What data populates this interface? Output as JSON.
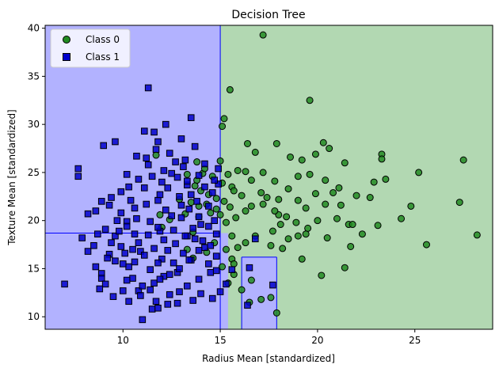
{
  "chart_data": {
    "type": "scatter",
    "title": "Decision Tree",
    "xlabel": "Radius Mean [standardized]",
    "ylabel": "Texture Mean [standardized]",
    "xlim": [
      6.0,
      29.0
    ],
    "ylim": [
      8.7,
      40.3
    ],
    "xticks": [
      10,
      15,
      20,
      25
    ],
    "yticks": [
      10,
      15,
      20,
      25,
      30,
      35,
      40
    ],
    "grid": false,
    "legend_position": "top-left",
    "colors": {
      "class0_region": "#b2d8b2",
      "class1_region": "#b2b2ff",
      "class0_marker": "#228b22",
      "class1_marker": "#0000cd",
      "boundary": "#0000ff"
    },
    "decision_regions": [
      {
        "label": "Class 1",
        "x": [
          6.0,
          15.0
        ],
        "y": [
          8.7,
          40.3
        ]
      },
      {
        "label": "Class 0",
        "x": [
          15.0,
          29.0
        ],
        "y": [
          8.7,
          40.3
        ]
      },
      {
        "label": "Class 1",
        "x": [
          16.1,
          17.9
        ],
        "y": [
          8.7,
          16.2
        ]
      },
      {
        "label": "Class 1",
        "x": [
          15.0,
          15.4
        ],
        "y": [
          8.7,
          18.7
        ]
      }
    ],
    "boundary_lines": [
      {
        "x": [
          15.0,
          15.0
        ],
        "y": [
          8.7,
          40.3
        ]
      },
      {
        "x": [
          6.0,
          15.0
        ],
        "y": [
          18.7,
          18.7
        ]
      },
      {
        "x": [
          16.1,
          16.1
        ],
        "y": [
          8.7,
          16.2
        ]
      },
      {
        "x": [
          17.9,
          17.9
        ],
        "y": [
          8.7,
          16.2
        ]
      },
      {
        "x": [
          16.1,
          17.9
        ],
        "y": [
          16.2,
          16.2
        ]
      }
    ],
    "series": [
      {
        "name": "Class 0",
        "marker": "circle",
        "points": [
          [
            17.2,
            39.3
          ],
          [
            15.5,
            33.6
          ],
          [
            15.2,
            30.6
          ],
          [
            15.1,
            29.8
          ],
          [
            16.4,
            28.0
          ],
          [
            17.9,
            28.0
          ],
          [
            19.6,
            32.5
          ],
          [
            16.8,
            27.1
          ],
          [
            18.6,
            26.6
          ],
          [
            19.2,
            26.3
          ],
          [
            20.3,
            28.1
          ],
          [
            20.6,
            27.5
          ],
          [
            19.9,
            26.9
          ],
          [
            21.4,
            26.0
          ],
          [
            23.3,
            26.9
          ],
          [
            23.3,
            26.4
          ],
          [
            23.5,
            24.3
          ],
          [
            25.2,
            25.0
          ],
          [
            27.5,
            26.3
          ],
          [
            27.3,
            21.9
          ],
          [
            24.8,
            21.5
          ],
          [
            24.3,
            20.2
          ],
          [
            25.6,
            17.5
          ],
          [
            28.2,
            18.5
          ],
          [
            22.7,
            22.4
          ],
          [
            22.0,
            22.6
          ],
          [
            21.7,
            17.3
          ],
          [
            21.4,
            15.1
          ],
          [
            20.2,
            14.3
          ],
          [
            19.2,
            16.0
          ],
          [
            19.0,
            18.4
          ],
          [
            18.5,
            18.1
          ],
          [
            18.1,
            19.6
          ],
          [
            17.7,
            18.9
          ],
          [
            18.0,
            20.6
          ],
          [
            16.3,
            21.0
          ],
          [
            16.6,
            21.5
          ],
          [
            17.1,
            22.9
          ],
          [
            17.4,
            22.4
          ],
          [
            18.0,
            22.2
          ],
          [
            18.5,
            23.3
          ],
          [
            19.0,
            22.1
          ],
          [
            19.4,
            21.3
          ],
          [
            19.9,
            22.8
          ],
          [
            20.4,
            21.7
          ],
          [
            20.8,
            22.9
          ],
          [
            21.2,
            21.6
          ],
          [
            20.0,
            20.0
          ],
          [
            19.5,
            19.2
          ],
          [
            18.9,
            19.8
          ],
          [
            18.2,
            17.1
          ],
          [
            17.6,
            17.4
          ],
          [
            16.8,
            18.4
          ],
          [
            16.3,
            17.7
          ],
          [
            15.9,
            17.2
          ],
          [
            15.6,
            18.4
          ],
          [
            15.3,
            19.8
          ],
          [
            15.8,
            20.3
          ],
          [
            16.1,
            22.6
          ],
          [
            15.6,
            23.5
          ],
          [
            15.1,
            23.9
          ],
          [
            15.4,
            24.8
          ],
          [
            15.9,
            25.2
          ],
          [
            16.3,
            25.1
          ],
          [
            15.7,
            23.1
          ],
          [
            15.2,
            22.0
          ],
          [
            15.5,
            21.4
          ],
          [
            15.0,
            20.6
          ],
          [
            15.3,
            17.0
          ],
          [
            15.6,
            16.0
          ],
          [
            15.1,
            15.2
          ],
          [
            15.7,
            14.4
          ],
          [
            15.4,
            13.5
          ],
          [
            16.1,
            12.8
          ],
          [
            16.5,
            11.5
          ],
          [
            17.1,
            11.8
          ],
          [
            16.6,
            13.8
          ],
          [
            17.6,
            12.0
          ],
          [
            17.9,
            10.4
          ],
          [
            19.4,
            18.6
          ],
          [
            20.5,
            18.2
          ],
          [
            21.6,
            19.6
          ],
          [
            21.0,
            20.2
          ],
          [
            19.6,
            24.8
          ],
          [
            20.4,
            24.2
          ],
          [
            19.0,
            24.6
          ],
          [
            17.8,
            24.1
          ],
          [
            17.2,
            25.0
          ],
          [
            16.6,
            24.2
          ],
          [
            14.6,
            24.6
          ],
          [
            14.1,
            24.9
          ],
          [
            13.8,
            24.2
          ],
          [
            13.3,
            24.8
          ],
          [
            13.7,
            23.6
          ],
          [
            14.0,
            23.1
          ],
          [
            14.4,
            22.7
          ],
          [
            14.8,
            22.3
          ],
          [
            14.3,
            21.7
          ],
          [
            13.9,
            21.5
          ],
          [
            13.5,
            21.9
          ],
          [
            14.8,
            21.2
          ],
          [
            14.5,
            20.8
          ],
          [
            13.9,
            20.4
          ],
          [
            13.2,
            20.7
          ],
          [
            12.9,
            22.2
          ],
          [
            12.4,
            20.1
          ],
          [
            12.0,
            19.3
          ],
          [
            11.9,
            20.6
          ],
          [
            13.6,
            18.8
          ],
          [
            14.7,
            17.7
          ],
          [
            14.3,
            16.7
          ],
          [
            13.3,
            17.0
          ],
          [
            13.6,
            16.1
          ],
          [
            15.7,
            15.5
          ],
          [
            17.2,
            21.7
          ],
          [
            17.8,
            21.0
          ],
          [
            18.4,
            20.4
          ],
          [
            21.8,
            19.6
          ],
          [
            22.3,
            18.6
          ],
          [
            23.1,
            19.5
          ],
          [
            21.1,
            23.4
          ],
          [
            22.9,
            24.0
          ],
          [
            11.7,
            26.8
          ],
          [
            13.8,
            26.1
          ],
          [
            14.2,
            25.4
          ],
          [
            15.0,
            26.2
          ]
        ]
      },
      {
        "name": "Class 1",
        "marker": "square",
        "points": [
          [
            7.7,
            25.4
          ],
          [
            7.7,
            24.6
          ],
          [
            7.0,
            13.4
          ],
          [
            8.2,
            20.7
          ],
          [
            8.2,
            16.8
          ],
          [
            8.6,
            21.0
          ],
          [
            8.6,
            15.2
          ],
          [
            8.7,
            18.6
          ],
          [
            8.9,
            14.5
          ],
          [
            8.9,
            14.0
          ],
          [
            9.1,
            19.1
          ],
          [
            9.1,
            13.4
          ],
          [
            9.3,
            21.6
          ],
          [
            9.3,
            16.5
          ],
          [
            9.6,
            28.2
          ],
          [
            9.6,
            18.4
          ],
          [
            9.9,
            20.8
          ],
          [
            9.9,
            17.3
          ],
          [
            10.0,
            12.7
          ],
          [
            10.2,
            24.8
          ],
          [
            10.2,
            19.9
          ],
          [
            10.3,
            15.2
          ],
          [
            10.3,
            11.6
          ],
          [
            10.6,
            21.3
          ],
          [
            10.6,
            18.6
          ],
          [
            10.8,
            12.7
          ],
          [
            10.9,
            16.8
          ],
          [
            11.0,
            9.7
          ],
          [
            11.1,
            29.3
          ],
          [
            11.1,
            23.4
          ],
          [
            11.3,
            33.8
          ],
          [
            11.3,
            25.8
          ],
          [
            11.4,
            19.9
          ],
          [
            11.5,
            10.8
          ],
          [
            11.6,
            29.2
          ],
          [
            11.8,
            28.2
          ],
          [
            11.8,
            22.1
          ],
          [
            11.9,
            18.9
          ],
          [
            12.0,
            16.0
          ],
          [
            12.2,
            30.0
          ],
          [
            12.2,
            21.1
          ],
          [
            12.4,
            27.0
          ],
          [
            12.5,
            24.9
          ],
          [
            12.6,
            19.0
          ],
          [
            12.8,
            14.6
          ],
          [
            12.8,
            11.4
          ],
          [
            13.0,
            28.5
          ],
          [
            13.0,
            20.3
          ],
          [
            13.2,
            26.3
          ],
          [
            13.3,
            23.7
          ],
          [
            13.3,
            18.4
          ],
          [
            13.5,
            30.7
          ],
          [
            13.5,
            15.9
          ],
          [
            13.7,
            27.7
          ],
          [
            13.8,
            22.0
          ],
          [
            14.0,
            19.6
          ],
          [
            14.0,
            12.4
          ],
          [
            14.2,
            25.9
          ],
          [
            14.2,
            17.2
          ],
          [
            14.4,
            21.5
          ],
          [
            14.5,
            14.6
          ],
          [
            14.7,
            20.0
          ],
          [
            14.8,
            16.3
          ],
          [
            14.9,
            25.4
          ],
          [
            9.9,
            23.0
          ],
          [
            10.4,
            22.1
          ],
          [
            10.7,
            26.7
          ],
          [
            11.2,
            26.5
          ],
          [
            11.7,
            27.4
          ],
          [
            12.1,
            25.2
          ],
          [
            12.7,
            26.1
          ],
          [
            13.1,
            25.6
          ],
          [
            14.9,
            23.8
          ],
          [
            14.6,
            22.9
          ],
          [
            14.1,
            17.9
          ],
          [
            13.7,
            18.1
          ],
          [
            13.1,
            16.6
          ],
          [
            12.6,
            15.6
          ],
          [
            12.1,
            14.2
          ],
          [
            11.6,
            13.5
          ],
          [
            11.0,
            13.2
          ],
          [
            10.5,
            14.0
          ],
          [
            10.0,
            15.5
          ],
          [
            9.6,
            15.8
          ],
          [
            9.4,
            17.7
          ],
          [
            9.8,
            18.9
          ],
          [
            10.2,
            19.4
          ],
          [
            10.7,
            20.2
          ],
          [
            11.2,
            21.7
          ],
          [
            11.9,
            22.7
          ],
          [
            12.3,
            23.4
          ],
          [
            12.9,
            22.5
          ],
          [
            13.4,
            21.2
          ],
          [
            13.9,
            20.4
          ],
          [
            14.4,
            19.4
          ],
          [
            14.8,
            18.6
          ],
          [
            14.5,
            17.4
          ],
          [
            13.9,
            16.9
          ],
          [
            13.4,
            15.9
          ],
          [
            12.9,
            15.0
          ],
          [
            12.4,
            14.4
          ],
          [
            11.9,
            13.9
          ],
          [
            11.4,
            12.8
          ],
          [
            10.9,
            12.2
          ],
          [
            11.4,
            14.9
          ],
          [
            11.8,
            15.6
          ],
          [
            12.3,
            16.9
          ],
          [
            12.7,
            17.6
          ],
          [
            13.2,
            18.4
          ],
          [
            13.6,
            19.2
          ],
          [
            12.1,
            18.0
          ],
          [
            11.6,
            17.1
          ],
          [
            11.1,
            16.4
          ],
          [
            10.6,
            15.7
          ],
          [
            10.1,
            16.6
          ],
          [
            10.8,
            17.7
          ],
          [
            11.3,
            18.5
          ],
          [
            11.8,
            19.3
          ],
          [
            12.5,
            20.5
          ],
          [
            13.0,
            21.6
          ],
          [
            13.5,
            22.7
          ],
          [
            14.2,
            23.5
          ],
          [
            14.7,
            24.2
          ],
          [
            13.9,
            24.7
          ],
          [
            13.3,
            24.1
          ],
          [
            12.8,
            24.5
          ],
          [
            12.0,
            24.0
          ],
          [
            11.5,
            24.6
          ],
          [
            10.8,
            24.3
          ],
          [
            10.3,
            23.5
          ],
          [
            9.4,
            22.4
          ],
          [
            8.9,
            22.0
          ],
          [
            9.7,
            20.0
          ],
          [
            10.5,
            17.0
          ],
          [
            11.7,
            11.6
          ],
          [
            12.4,
            12.3
          ],
          [
            13.3,
            13.2
          ],
          [
            13.9,
            13.9
          ],
          [
            14.4,
            15.5
          ],
          [
            14.8,
            14.8
          ],
          [
            15.3,
            13.4
          ],
          [
            15.6,
            14.9
          ],
          [
            15.0,
            12.6
          ],
          [
            14.6,
            11.9
          ],
          [
            13.6,
            11.7
          ],
          [
            12.9,
            12.6
          ],
          [
            12.3,
            11.3
          ],
          [
            11.8,
            10.9
          ],
          [
            10.2,
            13.8
          ],
          [
            9.5,
            12.1
          ],
          [
            8.8,
            12.9
          ],
          [
            9.2,
            16.1
          ],
          [
            8.5,
            17.4
          ],
          [
            7.9,
            18.2
          ],
          [
            16.8,
            18.1
          ],
          [
            16.5,
            15.1
          ],
          [
            17.7,
            13.3
          ],
          [
            16.4,
            11.2
          ],
          [
            9.0,
            27.8
          ]
        ]
      }
    ]
  }
}
